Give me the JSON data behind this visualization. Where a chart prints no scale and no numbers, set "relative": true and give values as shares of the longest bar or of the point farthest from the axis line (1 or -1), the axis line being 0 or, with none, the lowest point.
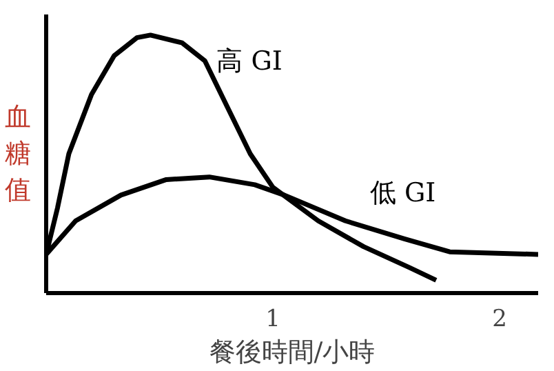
{
  "chart_data": {
    "type": "line",
    "relative": true,
    "xlabel": "餐後時間/小時",
    "ylabel": "血糖值",
    "xlim": [
      0,
      2.17
    ],
    "xticks": [
      1,
      2
    ],
    "grid": false,
    "marker": "none",
    "line_style": "solid",
    "series": [
      {
        "name": "高 GI",
        "color": "#000000",
        "x": [
          0,
          0.05,
          0.1,
          0.2,
          0.3,
          0.4,
          0.46,
          0.6,
          0.7,
          0.8,
          0.9,
          1.0,
          1.2,
          1.4,
          1.6,
          1.72
        ],
        "values": [
          0.15,
          0.33,
          0.54,
          0.77,
          0.92,
          0.99,
          1.0,
          0.97,
          0.9,
          0.72,
          0.54,
          0.41,
          0.28,
          0.18,
          0.1,
          0.05
        ]
      },
      {
        "name": "低 GI",
        "color": "#000000",
        "x": [
          0,
          0.13,
          0.33,
          0.53,
          0.72,
          0.92,
          1.05,
          1.32,
          1.58,
          1.78,
          2.17
        ],
        "values": [
          0.15,
          0.28,
          0.38,
          0.44,
          0.45,
          0.42,
          0.38,
          0.28,
          0.21,
          0.16,
          0.15
        ]
      }
    ]
  }
}
